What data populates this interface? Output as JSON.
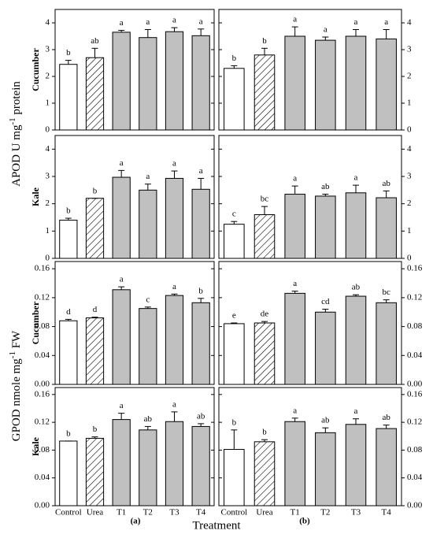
{
  "figure": {
    "y_labels": [
      {
        "prefix": "APOD U mg",
        "sup": "-1",
        "suffix": " protein"
      },
      {
        "prefix": "GPOD nmole mg",
        "sup": "-1",
        "suffix": " FW"
      }
    ],
    "x_label": "Treatment",
    "panel_labels": [
      "(a)",
      "(b)"
    ],
    "fills": [
      "#ffffff",
      "#ffffff",
      "#c0c0c0",
      "#c0c0c0",
      "#c0c0c0",
      "#c0c0c0"
    ],
    "hatched": [
      false,
      true,
      false,
      false,
      false,
      false
    ]
  },
  "chart_data": [
    {
      "type": "bar",
      "row_label": "Cucumber",
      "categories": [
        "Control",
        "Urea",
        "T1",
        "T2",
        "T3",
        "T4"
      ],
      "values": [
        2.45,
        2.7,
        3.65,
        3.45,
        3.67,
        3.52
      ],
      "errors": [
        0.15,
        0.35,
        0.07,
        0.3,
        0.15,
        0.25
      ],
      "letters": [
        "b",
        "ab",
        "a",
        "a",
        "a",
        "a"
      ],
      "ylim": [
        0,
        4.5
      ],
      "yticks": [
        0,
        1,
        2,
        3,
        4
      ],
      "tick_side": "left"
    },
    {
      "type": "bar",
      "categories": [
        "Control",
        "Urea",
        "T1",
        "T2",
        "T3",
        "T4"
      ],
      "values": [
        2.3,
        2.8,
        3.5,
        3.35,
        3.5,
        3.4
      ],
      "errors": [
        0.1,
        0.25,
        0.35,
        0.12,
        0.25,
        0.35
      ],
      "letters": [
        "b",
        "b",
        "a",
        "a",
        "a",
        "a"
      ],
      "ylim": [
        0,
        4.5
      ],
      "yticks": [
        0,
        1,
        2,
        3,
        4
      ],
      "tick_side": "right"
    },
    {
      "type": "bar",
      "row_label": "Kale",
      "categories": [
        "Control",
        "Urea",
        "T1",
        "T2",
        "T3",
        "T4"
      ],
      "values": [
        1.4,
        2.2,
        2.97,
        2.5,
        2.93,
        2.53
      ],
      "errors": [
        0.07,
        0,
        0.25,
        0.22,
        0.27,
        0.4
      ],
      "letters": [
        "b",
        "b",
        "a",
        "a",
        "a",
        "a"
      ],
      "ylim": [
        0,
        4.5
      ],
      "yticks": [
        0,
        1,
        2,
        3,
        4
      ],
      "tick_side": "left"
    },
    {
      "type": "bar",
      "categories": [
        "Control",
        "Urea",
        "T1",
        "T2",
        "T3",
        "T4"
      ],
      "values": [
        1.25,
        1.6,
        2.35,
        2.28,
        2.4,
        2.22
      ],
      "errors": [
        0.1,
        0.3,
        0.3,
        0.07,
        0.28,
        0.25
      ],
      "letters": [
        "c",
        "bc",
        "a",
        "ab",
        "a",
        "ab"
      ],
      "ylim": [
        0,
        4.5
      ],
      "yticks": [
        0,
        1,
        2,
        3,
        4
      ],
      "tick_side": "right"
    },
    {
      "type": "bar",
      "row_label": "Cucumber",
      "categories": [
        "Control",
        "Urea",
        "T1",
        "T2",
        "T3",
        "T4"
      ],
      "values": [
        0.088,
        0.092,
        0.131,
        0.105,
        0.123,
        0.113
      ],
      "errors": [
        0.002,
        0.001,
        0.004,
        0.002,
        0.002,
        0.006
      ],
      "letters": [
        "d",
        "d",
        "a",
        "c",
        "a",
        "b"
      ],
      "ylim": [
        0,
        0.17
      ],
      "yticks": [
        {
          "value": 0,
          "label": "0.00"
        },
        0.04,
        0.08,
        0.12,
        0.16
      ],
      "tick_side": "left"
    },
    {
      "type": "bar",
      "categories": [
        "Control",
        "Urea",
        "T1",
        "T2",
        "T3",
        "T4"
      ],
      "values": [
        0.084,
        0.085,
        0.126,
        0.1,
        0.122,
        0.113
      ],
      "errors": [
        0.001,
        0.002,
        0.003,
        0.004,
        0.002,
        0.004
      ],
      "letters": [
        "e",
        "de",
        "a",
        "cd",
        "ab",
        "bc"
      ],
      "ylim": [
        0,
        0.17
      ],
      "yticks": [
        {
          "value": 0,
          "label": "0.00"
        },
        0.04,
        0.08,
        0.12,
        0.16
      ],
      "tick_side": "right"
    },
    {
      "type": "bar",
      "row_label": "Kale",
      "categories": [
        "Control",
        "Urea",
        "T1",
        "T2",
        "T3",
        "T4"
      ],
      "values": [
        0.093,
        0.097,
        0.124,
        0.109,
        0.121,
        0.114
      ],
      "errors": [
        0,
        0.002,
        0.009,
        0.005,
        0.014,
        0.004
      ],
      "letters": [
        "b",
        "b",
        "a",
        "ab",
        "a",
        "ab"
      ],
      "ylim": [
        0,
        0.17
      ],
      "yticks": [
        {
          "value": 0,
          "label": "0.00"
        },
        0.04,
        0.08,
        0.12,
        0.16
      ],
      "tick_side": "left"
    },
    {
      "type": "bar",
      "categories": [
        "Control",
        "Urea",
        "T1",
        "T2",
        "T3",
        "T4"
      ],
      "values": [
        0.081,
        0.092,
        0.121,
        0.105,
        0.117,
        0.111
      ],
      "errors": [
        0.028,
        0.003,
        0.005,
        0.007,
        0.008,
        0.005
      ],
      "letters": [
        "b",
        "b",
        "a",
        "ab",
        "a",
        "ab"
      ],
      "ylim": [
        0,
        0.17
      ],
      "yticks": [
        {
          "value": 0,
          "label": "0.00"
        },
        0.04,
        0.08,
        0.12,
        0.16
      ],
      "tick_side": "right"
    }
  ]
}
